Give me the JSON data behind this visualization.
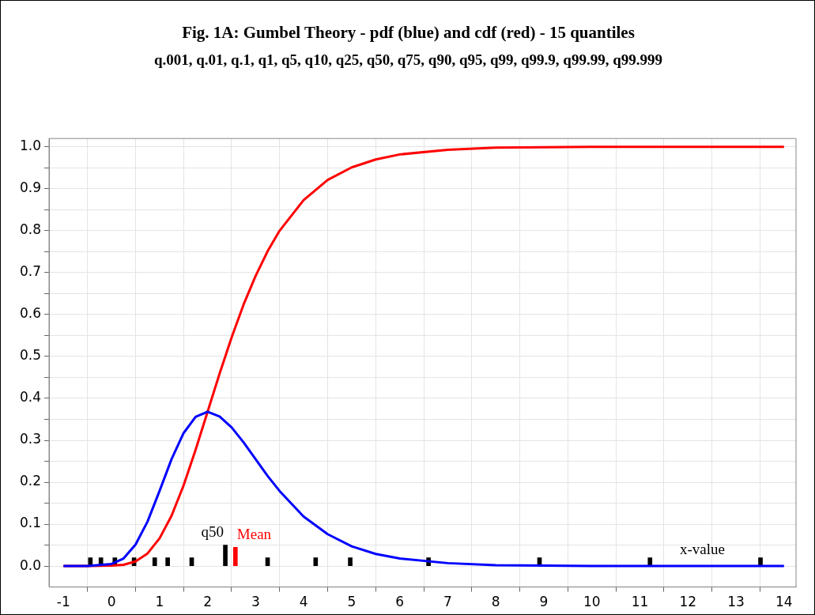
{
  "chart_data": {
    "type": "line",
    "title": "Fig. 1A:  Gumbel Theory - pdf (blue)  and  cdf (red) - 15 quantiles",
    "subtitle": "q.001,  q.01,  q.1,  q1,  q5,  q10,  q25,  q50,  q75,  q90,  q95,  q99,  q99.9,  q99.99,  q99.999",
    "xlabel": "x-value",
    "x": [
      -1,
      -0.5,
      0,
      0.25,
      0.5,
      0.75,
      1,
      1.25,
      1.5,
      1.75,
      2,
      2.25,
      2.5,
      2.75,
      3,
      3.25,
      3.5,
      4,
      4.5,
      5,
      5.5,
      6,
      7,
      8,
      9,
      10,
      12,
      14
    ],
    "series": [
      {
        "color": "#0000ff",
        "values": [
          0,
          0,
          0.005,
          0.018,
          0.051,
          0.106,
          0.179,
          0.255,
          0.317,
          0.356,
          0.368,
          0.357,
          0.331,
          0.295,
          0.255,
          0.215,
          0.179,
          0.118,
          0.076,
          0.047,
          0.029,
          0.018,
          0.007,
          0.002,
          0.001,
          0,
          0,
          0
        ]
      },
      {
        "color": "#ff0000",
        "values": [
          0,
          0,
          0.001,
          0.003,
          0.011,
          0.03,
          0.066,
          0.12,
          0.192,
          0.277,
          0.368,
          0.459,
          0.545,
          0.624,
          0.692,
          0.751,
          0.8,
          0.873,
          0.921,
          0.951,
          0.97,
          0.982,
          0.993,
          0.998,
          0.999,
          1,
          1,
          1
        ]
      },
      {
        "type": "bar",
        "color": "#000000",
        "x": [
          -0.44,
          -0.22,
          0.07,
          0.47,
          0.9,
          1.17,
          1.67,
          2.37,
          3.25,
          4.25,
          4.97,
          6.6,
          8.91,
          11.21,
          13.51
        ],
        "values": [
          0.02,
          0.02,
          0.02,
          0.02,
          0.02,
          0.02,
          0.02,
          0.05,
          0.02,
          0.02,
          0.02,
          0.02,
          0.02,
          0.02,
          0.02
        ]
      },
      {
        "type": "bar",
        "color": "#ff0000",
        "x": [
          2.58
        ],
        "values": [
          0.045
        ]
      }
    ],
    "annotations": [
      {
        "text": "q50",
        "x": 2.37,
        "y": 0.05
      },
      {
        "text": "Mean",
        "x": 2.58,
        "y": 0.045
      }
    ],
    "xlim": [
      -1.3,
      14.25
    ],
    "ylim": [
      -0.05,
      1.02
    ],
    "xticks": [
      -1,
      0,
      1,
      2,
      3,
      4,
      5,
      6,
      7,
      8,
      9,
      10,
      11,
      12,
      13,
      14
    ],
    "yticks": [
      {
        "value": 0,
        "label": "0.0"
      },
      {
        "value": 0.05,
        "label": null
      },
      {
        "value": 0.1,
        "label": "0.1"
      },
      {
        "value": 0.15,
        "label": null
      },
      {
        "value": 0.2,
        "label": "0.2"
      },
      {
        "value": 0.25,
        "label": null
      },
      {
        "value": 0.3,
        "label": "0.3"
      },
      {
        "value": 0.35,
        "label": null
      },
      {
        "value": 0.4,
        "label": "0.4"
      },
      {
        "value": 0.45,
        "label": null
      },
      {
        "value": 0.5,
        "label": "0.5"
      },
      {
        "value": 0.55,
        "label": null
      },
      {
        "value": 0.6,
        "label": "0.6"
      },
      {
        "value": 0.65,
        "label": null
      },
      {
        "value": 0.7,
        "label": "0.7"
      },
      {
        "value": 0.75,
        "label": null
      },
      {
        "value": 0.8,
        "label": "0.8"
      },
      {
        "value": 0.85,
        "label": null
      },
      {
        "value": 0.9,
        "label": "0.9"
      },
      {
        "value": 0.95,
        "label": null
      },
      {
        "value": 1,
        "label": "1.0"
      }
    ],
    "grid": true,
    "legend": false,
    "marker": "none",
    "line_style": "solid"
  }
}
